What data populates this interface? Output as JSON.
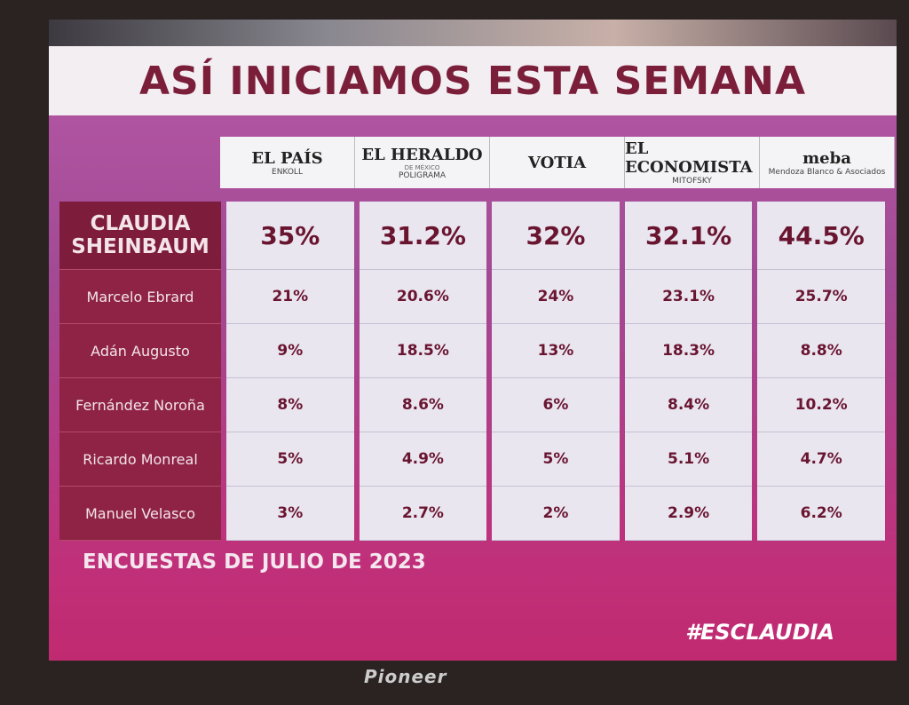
{
  "header": {
    "title": "ASÍ INICIAMOS ESTA SEMANA"
  },
  "pollsters": [
    {
      "name": "EL PAÍS",
      "sub": "ENKOLL"
    },
    {
      "name": "EL HERALDO",
      "tagline": "DE MÉXICO",
      "sub": "POLIGRAMA"
    },
    {
      "name": "VOTIA"
    },
    {
      "name": "EL ECONOMISTA",
      "sub": "MITOFSKY"
    },
    {
      "name": "meba",
      "sub": "Mendoza Blanco & Asociados"
    }
  ],
  "rows": [
    {
      "candidate": "CLAUDIA SHEINBAUM",
      "values": [
        "35%",
        "31.2%",
        "32%",
        "32.1%",
        "44.5%"
      ]
    },
    {
      "candidate": "Marcelo Ebrard",
      "values": [
        "21%",
        "20.6%",
        "24%",
        "23.1%",
        "25.7%"
      ]
    },
    {
      "candidate": "Adán Augusto",
      "values": [
        "9%",
        "18.5%",
        "13%",
        "18.3%",
        "8.8%"
      ]
    },
    {
      "candidate": "Fernández Noroña",
      "values": [
        "8%",
        "8.6%",
        "6%",
        "8.4%",
        "10.2%"
      ]
    },
    {
      "candidate": "Ricardo Monreal",
      "values": [
        "5%",
        "4.9%",
        "5%",
        "5.1%",
        "4.7%"
      ]
    },
    {
      "candidate": "Manuel Velasco",
      "values": [
        "3%",
        "2.7%",
        "2%",
        "2.9%",
        "6.2%"
      ]
    }
  ],
  "footer": {
    "note": "ENCUESTAS DE JULIO DE 2023",
    "hashtag": "#ESCLAUDIA"
  },
  "device": {
    "brand": "Pioneer"
  }
}
